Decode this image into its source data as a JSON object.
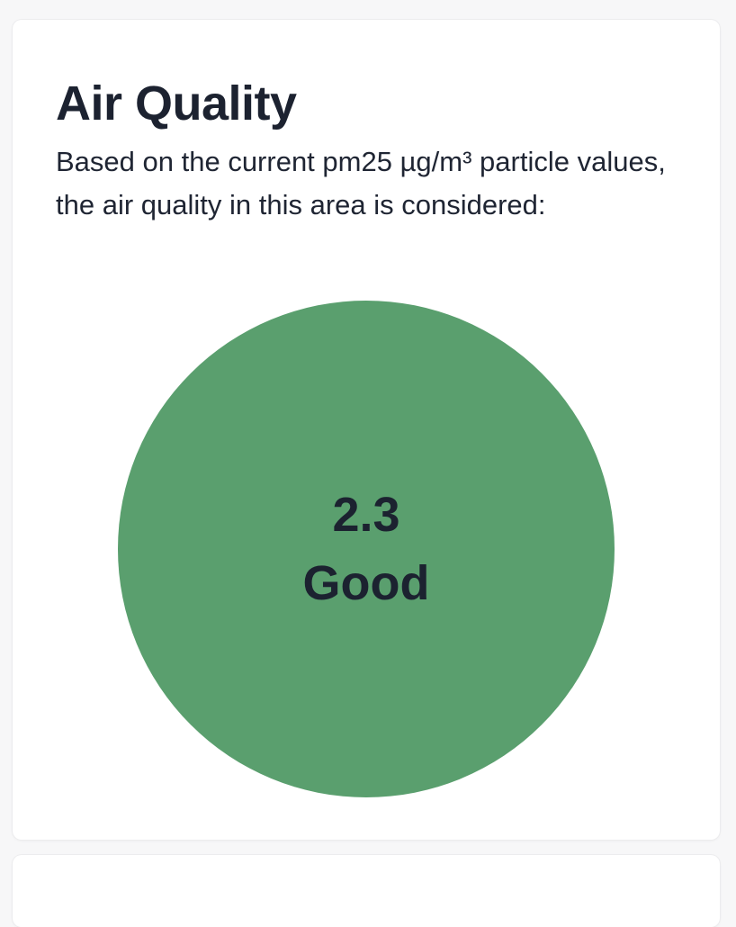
{
  "air_quality": {
    "title": "Air Quality",
    "description": "Based on the current pm25 µg/m³ particle values, the air quality in this area is considered:",
    "value": "2.3",
    "label": "Good",
    "indicator_color": "#5a9f6e"
  }
}
